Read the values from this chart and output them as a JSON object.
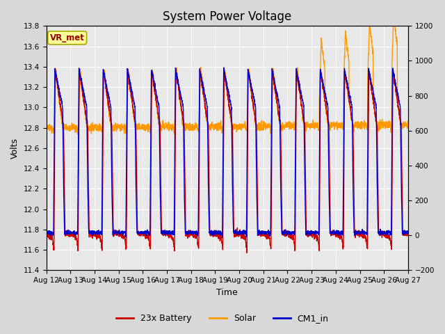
{
  "title": "System Power Voltage",
  "xlabel": "Time",
  "ylabel": "Volts",
  "ylim_left": [
    11.4,
    13.8
  ],
  "ylim_right": [
    -200,
    1200
  ],
  "x_start": 12,
  "x_end": 27,
  "x_ticks": [
    12,
    13,
    14,
    15,
    16,
    17,
    18,
    19,
    20,
    21,
    22,
    23,
    24,
    25,
    26,
    27
  ],
  "x_tick_labels": [
    "Aug 12",
    "Aug 13",
    "Aug 14",
    "Aug 15",
    "Aug 16",
    "Aug 17",
    "Aug 18",
    "Aug 19",
    "Aug 20",
    "Aug 21",
    "Aug 22",
    "Aug 23",
    "Aug 24",
    "Aug 25",
    "Aug 26",
    "Aug 27"
  ],
  "yticks_left": [
    11.4,
    11.6,
    11.8,
    12.0,
    12.2,
    12.4,
    12.6,
    12.8,
    13.0,
    13.2,
    13.4,
    13.6,
    13.8
  ],
  "yticks_right": [
    -200,
    0,
    200,
    400,
    600,
    800,
    1000,
    1200
  ],
  "color_battery": "#cc0000",
  "color_solar": "#ff9900",
  "color_cm1": "#0000cc",
  "bg_color": "#d8d8d8",
  "plot_bg": "#e8e8e8",
  "grid_color": "#ffffff",
  "legend_labels": [
    "23x Battery",
    "Solar",
    "CM1_in"
  ],
  "annotation": "VR_met",
  "annotation_box_color": "#ffff99",
  "annotation_text_color": "#990000",
  "title_fontsize": 12,
  "label_fontsize": 9,
  "tick_fontsize": 7.5,
  "legend_fontsize": 9,
  "linewidth": 1.0,
  "n_days": 15,
  "samples_per_day": 200
}
